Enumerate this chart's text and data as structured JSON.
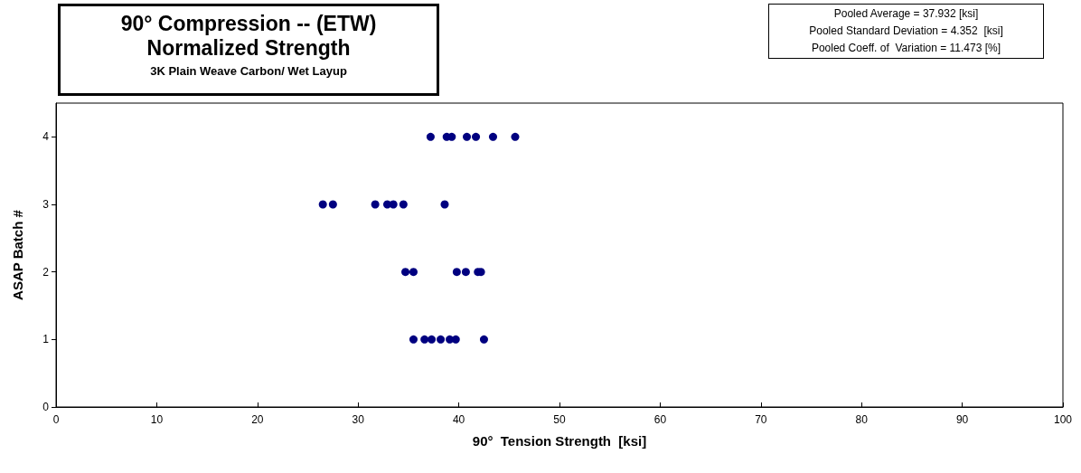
{
  "chart_data": {
    "type": "scatter",
    "title": "90° Compression -- (ETW)\nNormalized Strength",
    "subtitle": "3K Plain Weave Carbon/ Wet Layup",
    "xlabel": "90°  Tension Strength  [ksi]",
    "ylabel": "ASAP Batch #",
    "annotations": [
      "Pooled Average = 37.932 [ksi]",
      "Pooled Standard Deviation = 4.352  [ksi]",
      "Pooled Coeff. of  Variation = 11.473 [%]"
    ],
    "series": [
      {
        "color": "#000080",
        "x": [
          37.2,
          38.8,
          39.3,
          40.8,
          41.7,
          43.4,
          45.6,
          26.5,
          27.5,
          31.7,
          32.9,
          33.5,
          34.5,
          38.6,
          34.7,
          35.5,
          39.8,
          40.7,
          41.9,
          42.2,
          35.5,
          36.6,
          37.3,
          38.2,
          39.1,
          39.7,
          42.5
        ],
        "values": [
          4,
          4,
          4,
          4,
          4,
          4,
          4,
          3,
          3,
          3,
          3,
          3,
          3,
          3,
          2,
          2,
          2,
          2,
          2,
          2,
          1,
          1,
          1,
          1,
          1,
          1,
          1
        ]
      }
    ],
    "xlim": [
      0,
      100
    ],
    "xticks": [
      0,
      10,
      20,
      30,
      40,
      50,
      60,
      70,
      80,
      90,
      100
    ],
    "ylim": [
      0,
      4.5
    ],
    "yticks": [
      0,
      1,
      2,
      3,
      4
    ],
    "marker": "circle",
    "grid": false
  }
}
